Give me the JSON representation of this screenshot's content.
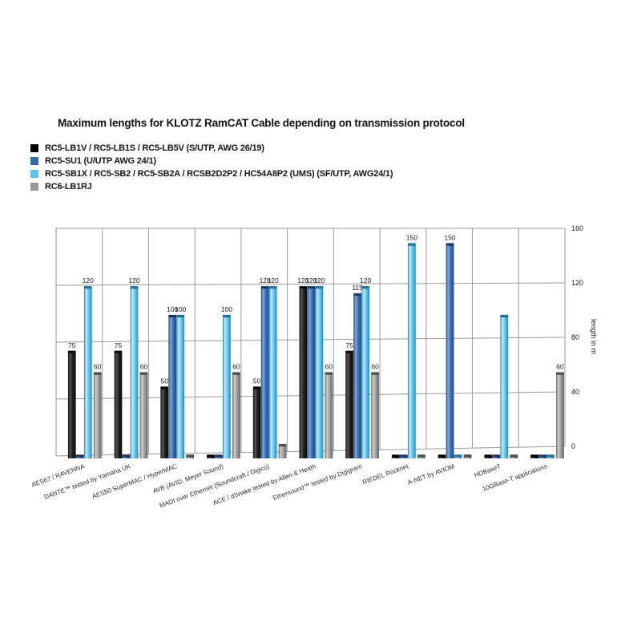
{
  "chart_data": {
    "type": "bar",
    "style": "3d-column",
    "title": "Maximum lengths for KLOTZ RamCAT Cable depending on transmission protocol",
    "ylabel": "length in m",
    "ylim": [
      0,
      160
    ],
    "yticks": [
      0,
      40,
      80,
      120,
      160
    ],
    "grid": true,
    "legend_position": "top-left",
    "categories": [
      "AES67 / RAVENNA",
      "DANTE™ tested by Yamaha UK",
      "AES50 SuperMAC / HyperMAC",
      "AVB (AVID, Meyer Sound)",
      "MADI over Ethernet (Soundcraft / Digico)",
      "ACE / dSnake tested by Allen & Heath",
      "Ethersound™ tested by Digigram",
      "RIEDEL Rocknet",
      "A-NET by AVIOM",
      "HDBaseT",
      "10GBase-T applications"
    ],
    "series": [
      {
        "name": "RC5-LB1V / RC5-LB1S / RC5-LB5V (S/UTP, AWG 26/19)",
        "legend_color": "#000000",
        "color": "#1e1e1e",
        "highlight": "#565656",
        "edge": "#0a0a0a",
        "cap": "#000000",
        "values": [
          75,
          75,
          50,
          0,
          50,
          120,
          75,
          0,
          0,
          0,
          0
        ],
        "labels": [
          "75",
          "75",
          "50",
          "",
          "50",
          "120",
          "75",
          "",
          "",
          "",
          ""
        ]
      },
      {
        "name": "RC5-SU1 (U/UTP AWG 24/1)",
        "legend_color": "#2e6ca8",
        "color": "#3a6fb8",
        "highlight": "#7fa9dc",
        "edge": "#1d4a85",
        "cap": "#16396e",
        "values": [
          0,
          0,
          100,
          0,
          120,
          120,
          115,
          0,
          150,
          0,
          0
        ],
        "labels": [
          "",
          "",
          "100",
          "",
          "120",
          "120",
          "115",
          "",
          "150",
          "",
          ""
        ]
      },
      {
        "name": "RC5-SB1X / RC5-SB2 / RC5-SB2A / RCSB2D2P2 / HC54A8P2 (UMS) (SF/UTP, AWG24/1)",
        "legend_color": "#5bc3ee",
        "color": "#5ec9f4",
        "highlight": "#c4ebfb",
        "edge": "#2693c9",
        "cap": "#1d7aa8",
        "values": [
          120,
          120,
          100,
          100,
          120,
          120,
          120,
          150,
          0,
          100,
          0
        ],
        "labels": [
          "120",
          "120",
          "100",
          "100",
          "120",
          "120",
          "120",
          "150",
          "",
          "",
          ""
        ]
      },
      {
        "name": "RC6-LB1RJ",
        "legend_color": "#999999",
        "color": "#9d9d9d",
        "highlight": "#d0d0d0",
        "edge": "#6b6b6b",
        "cap": "#4f4f4f",
        "values": [
          60,
          60,
          0,
          60,
          10,
          60,
          60,
          0,
          0,
          0,
          60
        ],
        "labels": [
          "60",
          "60",
          "",
          "60",
          "",
          "60",
          "60",
          "",
          "",
          "",
          "60"
        ]
      }
    ]
  }
}
